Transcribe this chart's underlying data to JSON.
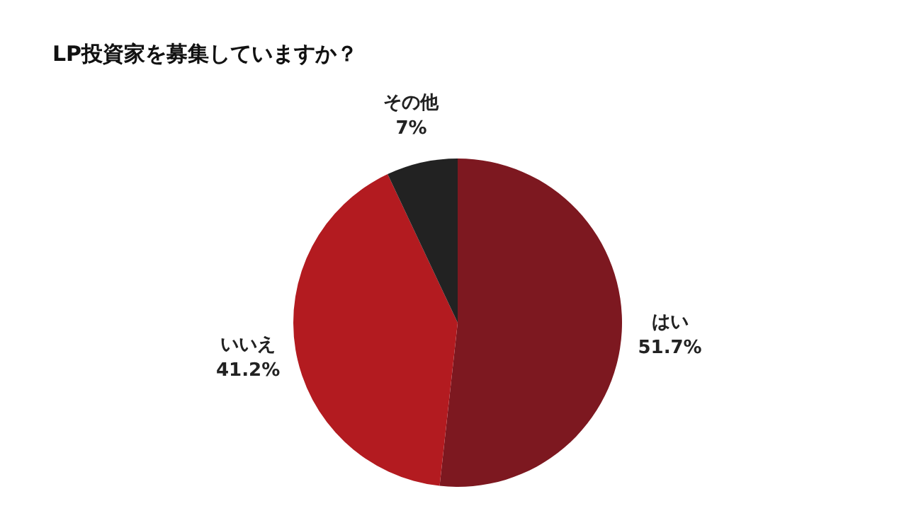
{
  "chart_data": {
    "type": "pie",
    "title": "LP投資家を募集していますか？",
    "categories": [
      "はい",
      "いいえ",
      "その他"
    ],
    "values": [
      51.7,
      41.2,
      7
    ],
    "colors": [
      "#7d1820",
      "#b31b20",
      "#222222"
    ],
    "value_labels": [
      "51.7%",
      "41.2%",
      "7%"
    ],
    "legend": false
  }
}
